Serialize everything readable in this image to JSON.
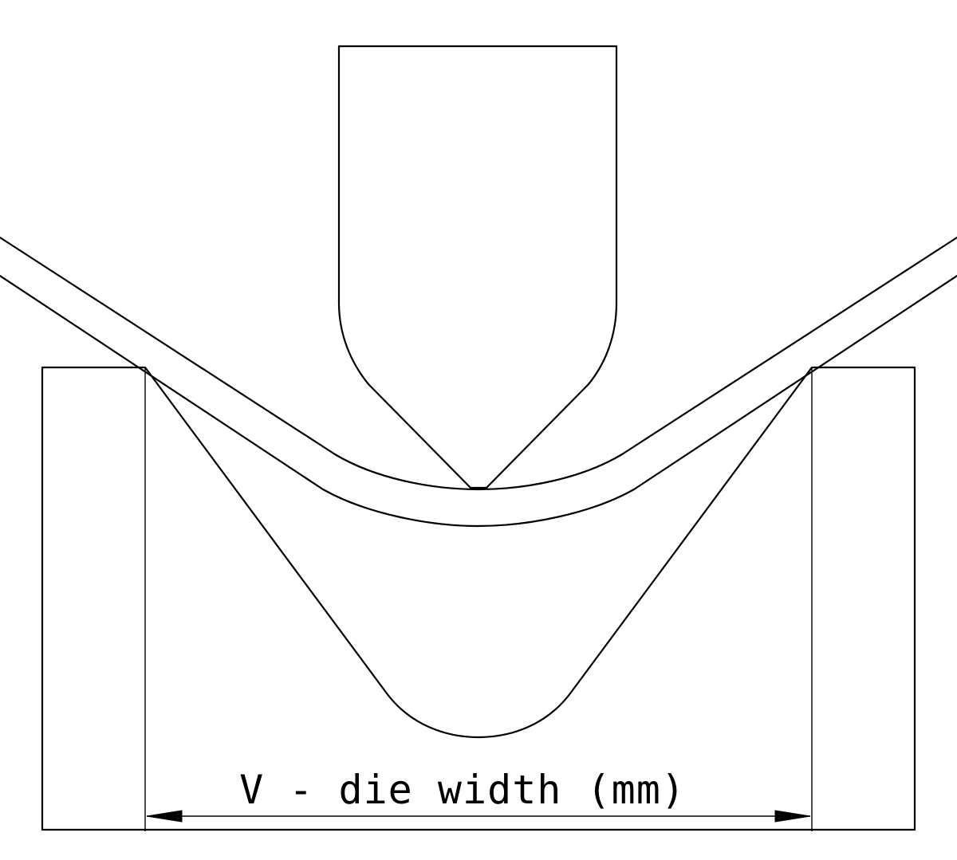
{
  "diagram": {
    "dimension_label": "V - die width (mm)"
  }
}
